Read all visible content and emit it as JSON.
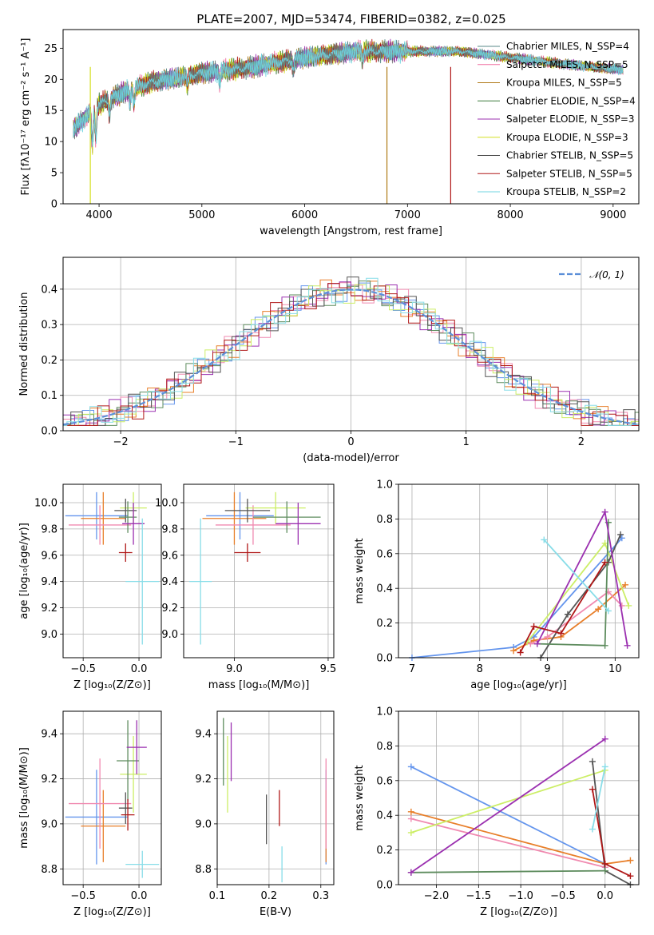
{
  "chart_data": [
    {
      "type": "line",
      "title": "PLATE=2007, MJD=53474, FIBERID=0382, z=0.025",
      "xlabel": "wavelength [Angstrom, rest frame]",
      "ylabel": "Flux [fλ10⁻¹⁷ erg cm⁻² s⁻¹ A⁻¹]",
      "xlim": [
        3650,
        9250
      ],
      "ylim": [
        0,
        28
      ],
      "xticks": [
        "4000",
        "5000",
        "6000",
        "7000",
        "8000",
        "9000"
      ],
      "yticks": [
        "0",
        "5",
        "10",
        "15",
        "20",
        "25"
      ],
      "grid": false,
      "legend_position": "right",
      "x": [
        3750,
        4000,
        4250,
        4500,
        5000,
        5500,
        6000,
        6500,
        7000,
        7500,
        8000,
        8500,
        9100
      ],
      "y_data": [
        12,
        16,
        18,
        19.5,
        21,
        22,
        23.5,
        24.5,
        24.5,
        24.5,
        23.5,
        22.5,
        21.5
      ],
      "series": [
        {
          "name": "Chabrier MILES, N_SSP=4",
          "color": "#5a8a8a"
        },
        {
          "name": "Salpeter MILES, N_SSP=5",
          "color": "#f06ea0"
        },
        {
          "name": "Kroupa MILES, N_SSP=5",
          "color": "#b07a18"
        },
        {
          "name": "Chabrier ELODIE, N_SSP=4",
          "color": "#3c7a3c"
        },
        {
          "name": "Salpeter ELODIE, N_SSP=3",
          "color": "#9b30b0"
        },
        {
          "name": "Kroupa ELODIE, N_SSP=3",
          "color": "#d4e020"
        },
        {
          "name": "Chabrier STELIB, N_SSP=5",
          "color": "#444444"
        },
        {
          "name": "Salpeter STELIB, N_SSP=5",
          "color": "#b01818"
        },
        {
          "name": "Kroupa STELIB, N_SSP=2",
          "color": "#70d4e0"
        }
      ]
    },
    {
      "type": "line",
      "xlabel": "(data-model)/error",
      "ylabel": "Normed distribution",
      "xlim": [
        -2.5,
        2.5
      ],
      "ylim": [
        0,
        0.49
      ],
      "xticks": [
        "−2",
        "−1",
        "0",
        "1",
        "2"
      ],
      "yticks": [
        "0.0",
        "0.1",
        "0.2",
        "0.3",
        "0.4"
      ],
      "grid": true,
      "legend": [
        "𝒩(0, 1)"
      ],
      "legend_position": "top-right",
      "series_colors": [
        "#6495ed",
        "#f08ab0",
        "#e87f2a",
        "#5e8c5e",
        "#9b30b0",
        "#ccee66",
        "#555555",
        "#b01818",
        "#88dde8"
      ],
      "normal_curve_color": "#5b8fd8"
    },
    {
      "type": "scatter",
      "xlabel": "Z [log₁₀(Z/Z⊙)]",
      "ylabel": "age [log₁₀(age/yr)]",
      "xlim": [
        -0.68,
        0.2
      ],
      "ylim": [
        8.82,
        10.14
      ],
      "xticks": [
        "−0.5",
        "0.0"
      ],
      "yticks": [
        "9.0",
        "9.2",
        "9.4",
        "9.6",
        "9.8",
        "10.0"
      ],
      "grid": true,
      "points": [
        {
          "x": -0.38,
          "y": 9.9,
          "xerr": 0.28,
          "yerr": 0.18,
          "color": "#6495ed"
        },
        {
          "x": -0.32,
          "y": 9.88,
          "xerr": 0.2,
          "yerr": 0.2,
          "color": "#e87f2a"
        },
        {
          "x": -0.35,
          "y": 9.83,
          "xerr": 0.28,
          "yerr": 0.15,
          "color": "#f08ab0"
        },
        {
          "x": -0.05,
          "y": 9.96,
          "xerr": 0.12,
          "yerr": 0.12,
          "color": "#ccee66"
        },
        {
          "x": -0.12,
          "y": 9.94,
          "xerr": 0.1,
          "yerr": 0.09,
          "color": "#555555"
        },
        {
          "x": -0.1,
          "y": 9.89,
          "xerr": 0.08,
          "yerr": 0.12,
          "color": "#5e8c5e"
        },
        {
          "x": -0.05,
          "y": 9.84,
          "xerr": 0.1,
          "yerr": 0.16,
          "color": "#9b30b0"
        },
        {
          "x": -0.12,
          "y": 9.62,
          "xerr": 0.06,
          "yerr": 0.07,
          "color": "#b01818"
        },
        {
          "x": 0.03,
          "y": 9.4,
          "xerr": 0.15,
          "yerr": 0.48,
          "color": "#88dde8"
        }
      ]
    },
    {
      "type": "scatter",
      "xlabel": "mass [log₁₀(M/M⊙)]",
      "xlim": [
        8.73,
        9.53
      ],
      "ylim": [
        8.82,
        10.14
      ],
      "xticks": [
        "9.0",
        "9.5"
      ],
      "yticks": [
        "9.0",
        "9.2",
        "9.4",
        "9.6",
        "9.8",
        "10.0"
      ],
      "grid": true,
      "points": [
        {
          "x": 9.03,
          "y": 9.9,
          "xerr": 0.18,
          "yerr": 0.18,
          "color": "#6495ed"
        },
        {
          "x": 9.0,
          "y": 9.88,
          "xerr": 0.17,
          "yerr": 0.2,
          "color": "#e87f2a"
        },
        {
          "x": 9.1,
          "y": 9.83,
          "xerr": 0.2,
          "yerr": 0.15,
          "color": "#f08ab0"
        },
        {
          "x": 9.22,
          "y": 9.96,
          "xerr": 0.16,
          "yerr": 0.12,
          "color": "#ccee66"
        },
        {
          "x": 9.07,
          "y": 9.94,
          "xerr": 0.12,
          "yerr": 0.09,
          "color": "#555555"
        },
        {
          "x": 9.28,
          "y": 9.89,
          "xerr": 0.18,
          "yerr": 0.12,
          "color": "#5e8c5e"
        },
        {
          "x": 9.34,
          "y": 9.84,
          "xerr": 0.12,
          "yerr": 0.16,
          "color": "#9b30b0"
        },
        {
          "x": 9.07,
          "y": 9.62,
          "xerr": 0.07,
          "yerr": 0.07,
          "color": "#b01818"
        },
        {
          "x": 8.82,
          "y": 9.4,
          "xerr": 0.06,
          "yerr": 0.48,
          "color": "#88dde8"
        }
      ]
    },
    {
      "type": "line",
      "xlabel": "age  [log₁₀(age/yr)]",
      "ylabel": "mass weight",
      "xlim": [
        6.8,
        10.35
      ],
      "ylim": [
        0,
        1.0
      ],
      "xticks": [
        "7",
        "8",
        "9",
        "10"
      ],
      "yticks": [
        "0.0",
        "0.2",
        "0.4",
        "0.6",
        "0.8",
        "1.0"
      ],
      "grid": true,
      "series": [
        {
          "color": "#6495ed",
          "x": [
            7.0,
            8.5,
            8.8,
            10.1
          ],
          "y": [
            0.0,
            0.06,
            0.12,
            0.69
          ]
        },
        {
          "color": "#e87f2a",
          "x": [
            8.5,
            8.8,
            9.2,
            9.75,
            10.15
          ],
          "y": [
            0.04,
            0.1,
            0.12,
            0.28,
            0.42
          ]
        },
        {
          "color": "#f08ab0",
          "x": [
            8.75,
            9.0,
            9.9,
            10.1
          ],
          "y": [
            0.08,
            0.12,
            0.38,
            0.3
          ]
        },
        {
          "color": "#ccee66",
          "x": [
            8.7,
            9.85,
            10.2
          ],
          "y": [
            0.09,
            0.66,
            0.3
          ]
        },
        {
          "color": "#555555",
          "x": [
            8.9,
            9.3,
            9.9,
            10.08
          ],
          "y": [
            0.0,
            0.25,
            0.55,
            0.71
          ]
        },
        {
          "color": "#5e8c5e",
          "x": [
            8.85,
            9.85,
            9.9
          ],
          "y": [
            0.08,
            0.07,
            0.78
          ]
        },
        {
          "color": "#9b30b0",
          "x": [
            8.85,
            9.85,
            10.18
          ],
          "y": [
            0.08,
            0.84,
            0.07
          ]
        },
        {
          "color": "#b01818",
          "x": [
            8.6,
            8.8,
            9.2,
            9.85
          ],
          "y": [
            0.03,
            0.18,
            0.14,
            0.55
          ]
        },
        {
          "color": "#88dde8",
          "x": [
            8.95,
            9.9
          ],
          "y": [
            0.68,
            0.27
          ]
        }
      ]
    },
    {
      "type": "scatter",
      "xlabel": "Z [log₁₀(Z/Z⊙)]",
      "ylabel": "mass [log₁₀(M/M⊙)]",
      "xlim": [
        -0.68,
        0.2
      ],
      "ylim": [
        8.73,
        9.5
      ],
      "xticks": [
        "−0.5",
        "0.0"
      ],
      "yticks": [
        "8.8",
        "9.0",
        "9.2",
        "9.4"
      ],
      "grid": true,
      "points": [
        {
          "x": -0.38,
          "y": 9.03,
          "xerr": 0.28,
          "yerr": 0.21,
          "color": "#6495ed"
        },
        {
          "x": -0.32,
          "y": 8.99,
          "xerr": 0.2,
          "yerr": 0.16,
          "color": "#e87f2a"
        },
        {
          "x": -0.35,
          "y": 9.09,
          "xerr": 0.28,
          "yerr": 0.2,
          "color": "#f08ab0"
        },
        {
          "x": -0.05,
          "y": 9.22,
          "xerr": 0.12,
          "yerr": 0.17,
          "color": "#ccee66"
        },
        {
          "x": -0.12,
          "y": 9.07,
          "xerr": 0.06,
          "yerr": 0.07,
          "color": "#555555"
        },
        {
          "x": -0.1,
          "y": 9.28,
          "xerr": 0.1,
          "yerr": 0.18,
          "color": "#5e8c5e"
        },
        {
          "x": -0.02,
          "y": 9.34,
          "xerr": 0.09,
          "yerr": 0.12,
          "color": "#9b30b0"
        },
        {
          "x": -0.1,
          "y": 9.04,
          "xerr": 0.06,
          "yerr": 0.07,
          "color": "#b01818"
        },
        {
          "x": 0.03,
          "y": 8.82,
          "xerr": 0.15,
          "yerr": 0.06,
          "color": "#88dde8"
        }
      ]
    },
    {
      "type": "scatter",
      "xlabel": "E(B-V)",
      "xlim": [
        0.1,
        0.325
      ],
      "ylim": [
        8.73,
        9.5
      ],
      "xticks": [
        "0.1",
        "0.2",
        "0.3"
      ],
      "yticks": [
        "8.8",
        "9.0",
        "9.2",
        "9.4"
      ],
      "grid": true,
      "points": [
        {
          "x": 0.31,
          "y": 9.03,
          "yerr": 0.21,
          "color": "#6495ed"
        },
        {
          "x": 0.31,
          "y": 8.99,
          "yerr": 0.16,
          "color": "#e87f2a"
        },
        {
          "x": 0.31,
          "y": 9.09,
          "yerr": 0.2,
          "color": "#f08ab0"
        },
        {
          "x": 0.12,
          "y": 9.22,
          "yerr": 0.17,
          "color": "#ccee66"
        },
        {
          "x": 0.195,
          "y": 9.02,
          "yerr": 0.11,
          "color": "#555555"
        },
        {
          "x": 0.112,
          "y": 9.32,
          "yerr": 0.15,
          "color": "#5e8c5e"
        },
        {
          "x": 0.127,
          "y": 9.32,
          "yerr": 0.13,
          "color": "#9b30b0"
        },
        {
          "x": 0.22,
          "y": 9.07,
          "yerr": 0.08,
          "color": "#b01818"
        },
        {
          "x": 0.225,
          "y": 8.82,
          "yerr": 0.08,
          "color": "#88dde8"
        }
      ]
    },
    {
      "type": "line",
      "xlabel": "Z [log₁₀(Z/Z⊙)]",
      "ylabel": "mass weight",
      "xlim": [
        -2.45,
        0.4
      ],
      "ylim": [
        0,
        1.0
      ],
      "xticks": [
        "−2.0",
        "−1.5",
        "−1.0",
        "−0.5",
        "0.0"
      ],
      "yticks": [
        "0.0",
        "0.2",
        "0.4",
        "0.6",
        "0.8",
        "1.0"
      ],
      "grid": true,
      "series": [
        {
          "color": "#6495ed",
          "x": [
            -2.3,
            0.0
          ],
          "y": [
            0.68,
            0.12
          ]
        },
        {
          "color": "#e87f2a",
          "x": [
            -2.3,
            0.0,
            0.3
          ],
          "y": [
            0.42,
            0.12,
            0.14
          ]
        },
        {
          "color": "#f08ab0",
          "x": [
            -2.3,
            0.0
          ],
          "y": [
            0.38,
            0.1
          ]
        },
        {
          "color": "#ccee66",
          "x": [
            -2.3,
            0.0
          ],
          "y": [
            0.3,
            0.66
          ]
        },
        {
          "color": "#555555",
          "x": [
            -0.15,
            0.0,
            0.3
          ],
          "y": [
            0.71,
            0.08,
            0.0
          ]
        },
        {
          "color": "#5e8c5e",
          "x": [
            -2.3,
            0.0
          ],
          "y": [
            0.07,
            0.08
          ]
        },
        {
          "color": "#9b30b0",
          "x": [
            -2.3,
            0.0
          ],
          "y": [
            0.07,
            0.84
          ]
        },
        {
          "color": "#b01818",
          "x": [
            -0.15,
            0.0,
            0.3
          ],
          "y": [
            0.55,
            0.12,
            0.05
          ]
        },
        {
          "color": "#88dde8",
          "x": [
            -0.15,
            0.0
          ],
          "y": [
            0.32,
            0.68
          ]
        }
      ]
    }
  ]
}
